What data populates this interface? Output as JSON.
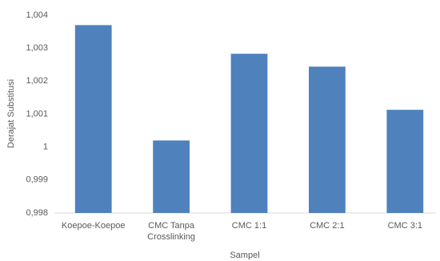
{
  "chart_data": {
    "type": "bar",
    "x_label": "Sampel",
    "y_label": "Derajat Substitusi",
    "categories": [
      "Koepoe-Koepoe",
      "CMC Tanpa Crosslinking",
      "CMC 1:1",
      "CMC 2:1",
      "CMC 3:1"
    ],
    "values": [
      1.0037,
      1.0002,
      1.00283,
      1.00244,
      1.00113
    ],
    "color": "#4f81bd",
    "ylim": [
      0.998,
      1.004
    ],
    "yticks": [
      {
        "value": 0.998,
        "label": "0,998"
      },
      {
        "value": 0.999,
        "label": "0,999"
      },
      1,
      {
        "value": 1.001,
        "label": "1,001"
      },
      {
        "value": 1.002,
        "label": "1,002"
      },
      {
        "value": 1.003,
        "label": "1,003"
      },
      {
        "value": 1.004,
        "label": "1,004"
      }
    ],
    "grid": false
  }
}
